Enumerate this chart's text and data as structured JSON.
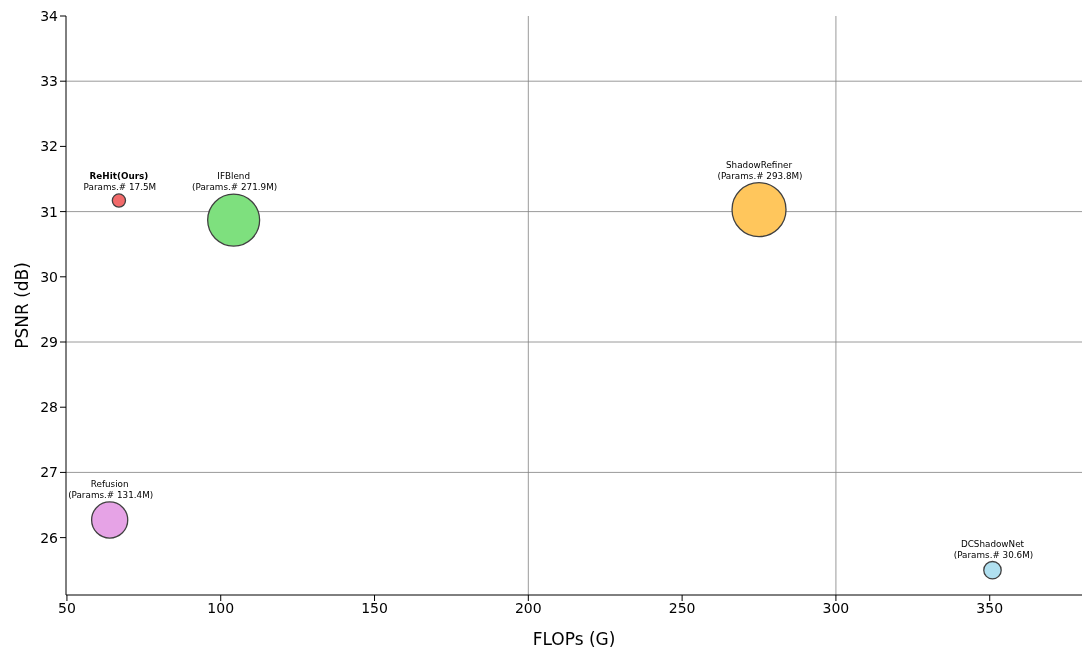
{
  "chart_data": {
    "type": "bubble",
    "xlabel": "FLOPs (G)",
    "ylabel": "PSNR (dB)",
    "xlim": [
      49.7,
      380
    ],
    "xticks": [
      50,
      100,
      150,
      200,
      250,
      300,
      350
    ],
    "ylim": [
      25.12,
      34
    ],
    "yticks": [
      26,
      27,
      28,
      29,
      30,
      31,
      32,
      33,
      34
    ],
    "legend": false,
    "series": [
      {
        "name": "ReHit(Ours)",
        "color": "#f26a6a",
        "x": [
          66.9
        ],
        "values": [
          31.17
        ],
        "sizes": [
          0.0596
        ]
      },
      {
        "name": "IFBlend",
        "color": "#7ee07e",
        "x": [
          104.2
        ],
        "values": [
          30.87
        ],
        "sizes": [
          0.9255
        ]
      },
      {
        "name": "ShadowRefiner",
        "color": "#ffc65c",
        "x": [
          275
        ],
        "values": [
          31.03
        ],
        "sizes": [
          1
        ]
      },
      {
        "name": "Refusion",
        "color": "#e6a3e6",
        "x": [
          63.9
        ],
        "values": [
          26.27
        ],
        "sizes": [
          0.4472
        ]
      },
      {
        "name": "DCShadowNet",
        "color": "#b0e0f0",
        "x": [
          350.9
        ],
        "values": [
          25.5
        ],
        "sizes": [
          0.1042
        ]
      }
    ],
    "annotations": [
      "Params.# 17.5M",
      "(Params.# 271.9M)",
      "(Params.# 293.8M)",
      "(Params.# 131.4M)",
      "(Params.# 30.6M)"
    ],
    "ref_lines": [
      {
        "axis": "y",
        "value": 27,
        "color": "#808080"
      },
      {
        "axis": "y",
        "value": 29,
        "color": "#808080"
      },
      {
        "axis": "y",
        "value": 31,
        "color": "#808080"
      },
      {
        "axis": "y",
        "value": 33,
        "color": "#808080"
      },
      {
        "axis": "x",
        "value": 200,
        "color": "#808080"
      },
      {
        "axis": "x",
        "value": 300,
        "color": "#808080"
      }
    ]
  }
}
